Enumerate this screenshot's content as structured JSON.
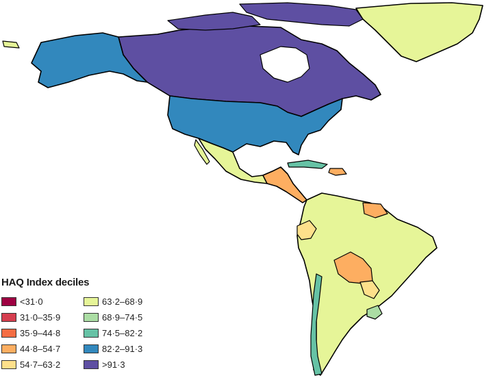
{
  "legend": {
    "title": "HAQ Index deciles",
    "items": [
      {
        "label": "<31·0",
        "color": "#9e0142"
      },
      {
        "label": "31·0–35·9",
        "color": "#d53e4f"
      },
      {
        "label": "35·9–44·8",
        "color": "#f46d43"
      },
      {
        "label": "44·8–54·7",
        "color": "#fdae61"
      },
      {
        "label": "54·7–63·2",
        "color": "#fee08b"
      },
      {
        "label": "63·2–68·9",
        "color": "#e6f598"
      },
      {
        "label": "68·9–74·5",
        "color": "#abdda4"
      },
      {
        "label": "74·5–82·2",
        "color": "#66c2a5"
      },
      {
        "label": "82·2–91·3",
        "color": "#3288bd"
      },
      {
        "label": ">91·3",
        "color": "#5e4fa2"
      }
    ]
  },
  "regions": [
    {
      "name": "Greenland",
      "decile": "63·2–68·9",
      "color": "#e6f598"
    },
    {
      "name": "Canada",
      "decile": ">91·3",
      "color": "#5e4fa2"
    },
    {
      "name": "Alaska (USA)",
      "decile": "82·2–91·3",
      "color": "#3288bd"
    },
    {
      "name": "USA",
      "decile": "82·2–91·3",
      "color": "#3288bd"
    },
    {
      "name": "Mexico",
      "decile": "63·2–68·9",
      "color": "#e6f598"
    },
    {
      "name": "Central America",
      "decile": "44·8–54·7",
      "color": "#fdae61"
    },
    {
      "name": "Cuba",
      "decile": "74·5–82·2",
      "color": "#66c2a5"
    },
    {
      "name": "South America",
      "decile": "63·2–68·9",
      "color": "#e6f598"
    },
    {
      "name": "Bolivia",
      "decile": "44·8–54·7",
      "color": "#fdae61"
    },
    {
      "name": "Paraguay",
      "decile": "54·7–63·2",
      "color": "#fee08b"
    },
    {
      "name": "Ecuador",
      "decile": "54·7–63·2",
      "color": "#fee08b"
    },
    {
      "name": "Guyana",
      "decile": "44·8–54·7",
      "color": "#fdae61"
    },
    {
      "name": "Chile",
      "decile": "74·5–82·2",
      "color": "#66c2a5"
    },
    {
      "name": "Uruguay",
      "decile": "68·9–74·5",
      "color": "#abdda4"
    }
  ]
}
